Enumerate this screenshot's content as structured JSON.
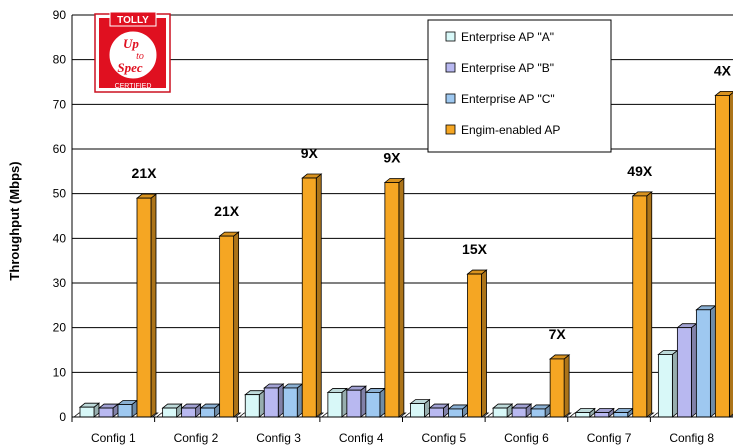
{
  "chart_data": {
    "type": "bar",
    "ylabel": "Throughput (Mbps)",
    "xlabel": "",
    "title": "",
    "ylim": [
      0,
      90
    ],
    "yticks": [
      0,
      10,
      20,
      30,
      40,
      50,
      60,
      70,
      80,
      90
    ],
    "grid": true,
    "legend_position": "top-right",
    "categories": [
      "Config 1",
      "Config 2",
      "Config 3",
      "Config 4",
      "Config 5",
      "Config 6",
      "Config 7",
      "Config 8"
    ],
    "series": [
      {
        "name": "Enterprise AP \"A\"",
        "color": "#d8f8f8",
        "values": [
          2.2,
          2.0,
          5.0,
          5.5,
          3.0,
          2.0,
          1.0,
          14.0
        ]
      },
      {
        "name": "Enterprise AP \"B\"",
        "color": "#b8b8f0",
        "values": [
          2.0,
          2.0,
          6.5,
          6.0,
          2.0,
          2.0,
          1.0,
          20.0
        ]
      },
      {
        "name": "Enterprise AP \"C\"",
        "color": "#9ec8f0",
        "values": [
          2.8,
          2.0,
          6.5,
          5.5,
          1.8,
          1.8,
          1.0,
          24.0
        ]
      },
      {
        "name": "Engim-enabled AP",
        "color": "#f5a623",
        "values": [
          49.0,
          40.5,
          53.5,
          52.5,
          32.0,
          13.0,
          49.5,
          72.0
        ]
      }
    ],
    "annotations": [
      "21X",
      "21X",
      "9X",
      "9X",
      "15X",
      "7X",
      "49X",
      "4X"
    ]
  },
  "logo": {
    "top_text": "TOLLY",
    "line1": "Up",
    "line2": "to",
    "line3": "Spec",
    "bottom_text": "CERTIFIED"
  }
}
